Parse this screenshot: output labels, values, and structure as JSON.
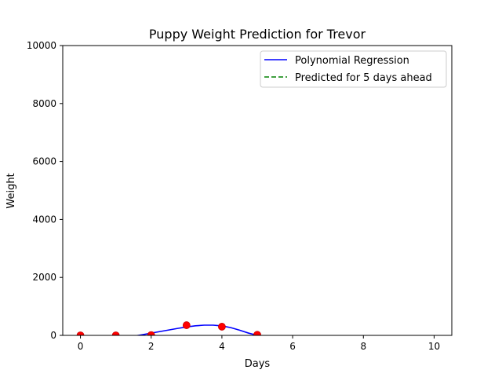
{
  "chart_data": {
    "type": "scatter",
    "title": "Puppy Weight Prediction for Trevor",
    "xlabel": "Days",
    "ylabel": "Weight",
    "xlim": [
      -0.5,
      10.5
    ],
    "ylim": [
      0,
      10000
    ],
    "xticks": [
      0,
      2,
      4,
      6,
      8,
      10
    ],
    "yticks": [
      0,
      2000,
      4000,
      6000,
      8000,
      10000
    ],
    "grid": false,
    "legend_position": "top-right",
    "points": {
      "color": "#ff0000",
      "edge_color": "#cc0000",
      "x": [
        0,
        1,
        2,
        3,
        4,
        5
      ],
      "y": [
        0,
        0,
        10,
        350,
        300,
        20
      ]
    },
    "series": [
      {
        "name": "Polynomial Regression",
        "kind": "line",
        "style": "solid",
        "color": "#0000ff",
        "x": [
          0,
          0.25,
          0.5,
          0.75,
          1,
          1.25,
          1.5,
          1.75,
          2,
          2.25,
          2.5,
          2.75,
          3,
          3.25,
          3.5,
          3.75,
          4,
          4.25,
          4.5,
          4.75,
          5
        ],
        "y": [
          0,
          -38,
          -68,
          -86,
          -86,
          -66,
          -28,
          22,
          78,
          132,
          186,
          240,
          290,
          330,
          352,
          352,
          326,
          268,
          180,
          80,
          0
        ]
      },
      {
        "name": "Predicted for 5 days ahead",
        "kind": "line",
        "style": "dashed",
        "color": "#008000",
        "x": [],
        "y": []
      }
    ]
  }
}
